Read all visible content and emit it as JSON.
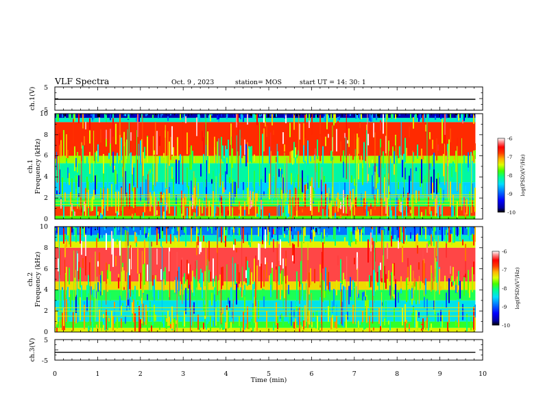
{
  "header": {
    "title": "VLF Spectra",
    "date": "Oct. 9  , 2023",
    "station": "station= MOS",
    "start": "start  UT  =   14: 30: 1"
  },
  "panels": {
    "ch1v_label": "ch.1(V)",
    "ch1_label": "ch.1",
    "ch2_label": "ch.2",
    "ch3v_label": "ch.3(V)",
    "freq_label": "Frequency (kHz)",
    "x_label": "Time (min)"
  },
  "chart_data": [
    {
      "type": "line",
      "name": "ch.1(V)",
      "ylabel": "ch.1(V)",
      "ylim": [
        -5,
        5
      ],
      "yticks": [
        "5",
        "-5"
      ],
      "xlim": [
        0,
        10
      ],
      "x": [
        0,
        9.83
      ],
      "values": [
        -0.3,
        -0.3
      ]
    },
    {
      "type": "heatmap",
      "name": "ch.1",
      "ylabel": "Frequency (kHz)",
      "ylim": [
        0,
        10
      ],
      "yticks": [
        "0",
        "2",
        "4",
        "6",
        "8",
        "10"
      ],
      "xlim": [
        0,
        10
      ],
      "data_end_min": 9.83,
      "colorbar": {
        "label": "log(PSD)(V²/Hz)",
        "range": [
          -10,
          -6
        ],
        "ticks": [
          "-6",
          "-7",
          "-8",
          "-9",
          "-10"
        ]
      },
      "bands": [
        {
          "f": [
            0.0,
            0.3
          ],
          "psd": -8.0
        },
        {
          "f": [
            0.3,
            1.2
          ],
          "psd": -7.0
        },
        {
          "f": [
            1.2,
            2.0
          ],
          "psd": -8.2
        },
        {
          "f": [
            2.0,
            3.5
          ],
          "psd": -8.7
        },
        {
          "f": [
            3.5,
            5.3
          ],
          "psd": -8.4
        },
        {
          "f": [
            5.3,
            6.0
          ],
          "psd": -7.8
        },
        {
          "f": [
            6.0,
            9.2
          ],
          "psd": -6.9
        },
        {
          "f": [
            9.2,
            9.6
          ],
          "psd": -8.5
        },
        {
          "f": [
            9.6,
            10.0
          ],
          "psd": -9.6
        }
      ],
      "lines_khz": [
        1.4,
        1.7,
        2.1,
        2.3
      ]
    },
    {
      "type": "heatmap",
      "name": "ch.2",
      "ylabel": "Frequency (kHz)",
      "ylim": [
        0,
        10
      ],
      "yticks": [
        "0",
        "2",
        "4",
        "6",
        "8",
        "10"
      ],
      "xlim": [
        0,
        10
      ],
      "data_end_min": 9.83,
      "colorbar": {
        "label": "log(PSD)(V²/Hz)",
        "range": [
          -10,
          -6
        ],
        "ticks": [
          "-6",
          "-7",
          "-8",
          "-9",
          "-10"
        ]
      },
      "bands": [
        {
          "f": [
            0.0,
            0.4
          ],
          "psd": -7.6
        },
        {
          "f": [
            0.4,
            1.0
          ],
          "psd": -8.1
        },
        {
          "f": [
            1.0,
            3.0
          ],
          "psd": -8.6
        },
        {
          "f": [
            3.0,
            4.0
          ],
          "psd": -8.2
        },
        {
          "f": [
            4.0,
            4.8
          ],
          "psd": -7.5
        },
        {
          "f": [
            4.8,
            8.0
          ],
          "psd": -6.5
        },
        {
          "f": [
            8.0,
            8.6
          ],
          "psd": -7.6
        },
        {
          "f": [
            8.6,
            9.2
          ],
          "psd": -8.5
        },
        {
          "f": [
            9.2,
            10.0
          ],
          "psd": -9.0
        }
      ],
      "lines_khz": [
        1.5,
        2.0,
        2.3
      ]
    },
    {
      "type": "line",
      "name": "ch.3(V)",
      "ylabel": "ch.3(V)",
      "ylim": [
        -5,
        5
      ],
      "yticks": [
        "5",
        "-5"
      ],
      "xlim": [
        0,
        10
      ],
      "x": [
        0,
        9.83
      ],
      "values": [
        -1.2,
        -1.2
      ]
    }
  ],
  "x_axis": {
    "label": "Time (min)",
    "range": [
      0,
      10
    ],
    "ticks": [
      "0",
      "1",
      "2",
      "3",
      "4",
      "5",
      "6",
      "7",
      "8",
      "9",
      "10"
    ]
  },
  "colormap": [
    "#000000",
    "#0000a0",
    "#0000ff",
    "#0078ff",
    "#00dcff",
    "#00ff8c",
    "#46ff00",
    "#dcff00",
    "#ffb400",
    "#ff3c00",
    "#ff0000",
    "#ff8c8c",
    "#ffffff"
  ]
}
